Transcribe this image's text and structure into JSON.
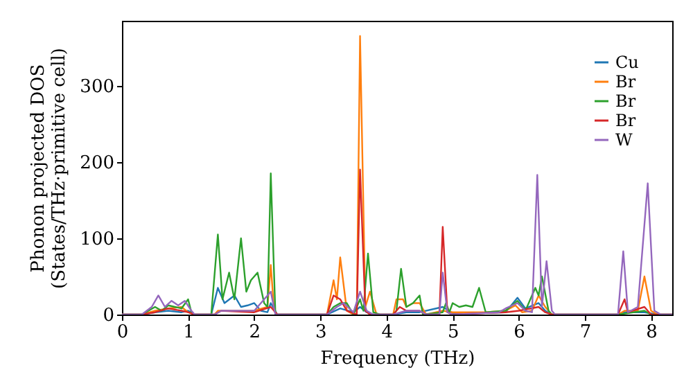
{
  "chart_data": {
    "type": "line",
    "xlabel": "Frequency (THz)",
    "ylabel": "Phonon projected DOS\n(States/THz·primitive cell)",
    "xlim": [
      0,
      8.32
    ],
    "xticks": [
      0,
      1,
      2,
      3,
      4,
      5,
      6,
      7,
      8
    ],
    "ylim": [
      0,
      385
    ],
    "yticks": [
      0,
      100,
      200,
      300
    ],
    "grid": false,
    "legend": "top right",
    "marker": "none",
    "line_style": "solid",
    "series": [
      {
        "name": "Cu",
        "color": "#1f77b4",
        "x": [
          0,
          0.3,
          0.5,
          0.7,
          0.9,
          1.0,
          1.1,
          1.35,
          1.45,
          1.55,
          1.7,
          1.8,
          1.9,
          2.0,
          2.1,
          2.2,
          2.25,
          2.35,
          3.1,
          3.3,
          3.5,
          3.6,
          3.7,
          3.8,
          4.1,
          4.3,
          4.5,
          4.85,
          5.0,
          5.5,
          5.8,
          5.98,
          6.1,
          6.3,
          6.4,
          6.5,
          7.5,
          7.6,
          7.9,
          8.1,
          8.32
        ],
        "values": [
          0,
          0,
          3,
          5,
          3,
          5,
          0,
          0,
          35,
          15,
          25,
          10,
          12,
          15,
          5,
          3,
          15,
          0,
          0,
          8,
          3,
          10,
          3,
          0,
          0,
          3,
          3,
          10,
          2,
          2,
          3,
          22,
          8,
          15,
          5,
          0,
          0,
          3,
          3,
          0,
          0
        ]
      },
      {
        "name": "Br",
        "color": "#ff7f0e",
        "x": [
          0,
          0.3,
          0.5,
          0.7,
          0.9,
          1.0,
          1.1,
          1.4,
          1.45,
          1.7,
          2.0,
          2.2,
          2.25,
          2.3,
          2.35,
          3.1,
          3.2,
          3.25,
          3.3,
          3.4,
          3.5,
          3.55,
          3.6,
          3.68,
          3.75,
          3.85,
          4.1,
          4.15,
          4.25,
          4.3,
          4.4,
          4.5,
          4.6,
          4.85,
          5.0,
          5.5,
          5.8,
          5.95,
          6.05,
          6.2,
          6.3,
          6.4,
          6.5,
          7.5,
          7.6,
          7.8,
          7.9,
          8.0,
          8.1,
          8.32
        ],
        "values": [
          0,
          0,
          5,
          8,
          10,
          3,
          0,
          0,
          5,
          5,
          5,
          10,
          65,
          5,
          0,
          0,
          45,
          20,
          75,
          5,
          0,
          0,
          365,
          10,
          30,
          0,
          0,
          20,
          20,
          10,
          15,
          15,
          0,
          5,
          3,
          3,
          5,
          12,
          3,
          5,
          25,
          10,
          0,
          0,
          5,
          5,
          50,
          5,
          0,
          0
        ]
      },
      {
        "name": "Br",
        "color": "#2ca02c",
        "x": [
          0,
          0.3,
          0.5,
          0.6,
          0.7,
          0.8,
          0.9,
          1.0,
          1.05,
          1.1,
          1.35,
          1.45,
          1.52,
          1.62,
          1.7,
          1.8,
          1.88,
          1.95,
          2.05,
          2.15,
          2.2,
          2.25,
          2.32,
          3.1,
          3.2,
          3.3,
          3.4,
          3.5,
          3.6,
          3.65,
          3.72,
          3.8,
          3.9,
          4.1,
          4.15,
          4.22,
          4.3,
          4.4,
          4.5,
          4.55,
          4.85,
          4.9,
          4.95,
          5.0,
          5.1,
          5.2,
          5.3,
          5.4,
          5.5,
          5.8,
          5.98,
          6.1,
          6.25,
          6.3,
          6.35,
          6.45,
          6.5,
          7.5,
          7.9,
          8.0,
          8.32
        ],
        "values": [
          0,
          0,
          10,
          5,
          12,
          10,
          8,
          20,
          3,
          0,
          0,
          105,
          20,
          55,
          20,
          100,
          30,
          45,
          55,
          15,
          10,
          185,
          0,
          0,
          10,
          15,
          15,
          0,
          20,
          5,
          80,
          3,
          0,
          0,
          5,
          60,
          10,
          15,
          25,
          0,
          3,
          15,
          3,
          15,
          10,
          12,
          10,
          35,
          3,
          5,
          18,
          5,
          35,
          25,
          50,
          5,
          0,
          0,
          5,
          0,
          0
        ]
      },
      {
        "name": "Br",
        "color": "#d62728",
        "x": [
          0,
          0.3,
          0.5,
          0.7,
          0.9,
          1.0,
          1.1,
          1.4,
          1.5,
          2.0,
          2.25,
          2.35,
          3.1,
          3.2,
          3.3,
          3.4,
          3.55,
          3.6,
          3.68,
          3.75,
          4.1,
          4.2,
          4.3,
          4.5,
          4.6,
          4.8,
          4.85,
          4.92,
          5.0,
          5.5,
          5.8,
          6.0,
          6.3,
          6.4,
          6.5,
          7.5,
          7.6,
          7.65,
          7.9,
          8.0,
          8.32
        ],
        "values": [
          0,
          0,
          3,
          8,
          5,
          3,
          0,
          0,
          5,
          3,
          10,
          0,
          0,
          25,
          20,
          5,
          0,
          190,
          5,
          0,
          0,
          10,
          5,
          5,
          0,
          0,
          115,
          3,
          0,
          2,
          3,
          5,
          10,
          3,
          0,
          0,
          20,
          3,
          10,
          0,
          0
        ]
      },
      {
        "name": "W",
        "color": "#9467bd",
        "x": [
          0,
          0.3,
          0.45,
          0.55,
          0.65,
          0.75,
          0.85,
          0.95,
          1.05,
          1.1,
          1.4,
          1.5,
          2.0,
          2.25,
          2.32,
          3.1,
          3.25,
          3.35,
          3.5,
          3.6,
          3.7,
          3.8,
          4.1,
          4.3,
          4.5,
          4.6,
          4.8,
          4.85,
          4.92,
          5.0,
          5.5,
          5.7,
          5.8,
          5.98,
          6.1,
          6.2,
          6.28,
          6.35,
          6.42,
          6.5,
          6.55,
          7.5,
          7.58,
          7.65,
          7.8,
          7.95,
          8.05,
          8.15,
          8.32
        ],
        "values": [
          0,
          0,
          10,
          25,
          10,
          18,
          12,
          18,
          5,
          0,
          0,
          5,
          5,
          30,
          0,
          0,
          10,
          15,
          3,
          30,
          5,
          0,
          0,
          5,
          5,
          0,
          0,
          55,
          3,
          0,
          2,
          3,
          8,
          15,
          5,
          3,
          183,
          10,
          70,
          5,
          0,
          0,
          83,
          3,
          10,
          172,
          5,
          0,
          0
        ]
      }
    ]
  }
}
